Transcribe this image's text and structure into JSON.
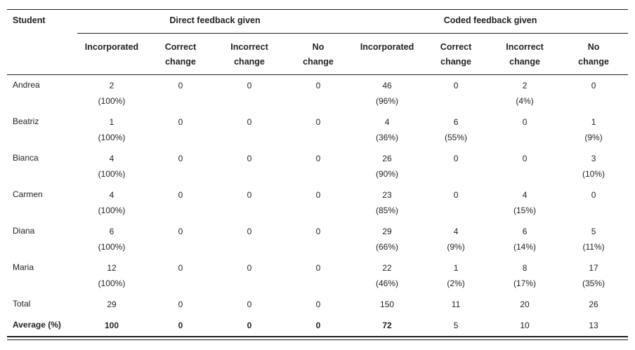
{
  "colors": {
    "text": "#231f20",
    "rule": "#1c1c1c",
    "background": "#ffffff"
  },
  "table": {
    "student_header": "Student",
    "groups": [
      {
        "label": "Direct feedback given"
      },
      {
        "label": "Coded feedback given"
      }
    ],
    "subheaders": [
      {
        "line1": "Incorporated",
        "line2": ""
      },
      {
        "line1": "Correct",
        "line2": "change"
      },
      {
        "line1": "Incorrect",
        "line2": "change"
      },
      {
        "line1": "No",
        "line2": "change"
      },
      {
        "line1": "Incorporated",
        "line2": ""
      },
      {
        "line1": "Correct",
        "line2": "change"
      },
      {
        "line1": "Incorrect",
        "line2": "change"
      },
      {
        "line1": "No",
        "line2": "change"
      }
    ],
    "rows": [
      {
        "student": "Andrea",
        "bold": false,
        "cells": [
          {
            "count": "2",
            "pct": "(100%)"
          },
          {
            "count": "0",
            "pct": ""
          },
          {
            "count": "0",
            "pct": ""
          },
          {
            "count": "0",
            "pct": ""
          },
          {
            "count": "46",
            "pct": "(96%)"
          },
          {
            "count": "0",
            "pct": ""
          },
          {
            "count": "2",
            "pct": "(4%)"
          },
          {
            "count": "0",
            "pct": ""
          }
        ]
      },
      {
        "student": "Beatriz",
        "bold": false,
        "cells": [
          {
            "count": "1",
            "pct": "(100%)"
          },
          {
            "count": "0",
            "pct": ""
          },
          {
            "count": "0",
            "pct": ""
          },
          {
            "count": "0",
            "pct": ""
          },
          {
            "count": "4",
            "pct": "(36%)"
          },
          {
            "count": "6",
            "pct": "(55%)"
          },
          {
            "count": "0",
            "pct": ""
          },
          {
            "count": "1",
            "pct": "(9%)"
          }
        ]
      },
      {
        "student": "Bianca",
        "bold": false,
        "cells": [
          {
            "count": "4",
            "pct": "(100%)"
          },
          {
            "count": "0",
            "pct": ""
          },
          {
            "count": "0",
            "pct": ""
          },
          {
            "count": "0",
            "pct": ""
          },
          {
            "count": "26",
            "pct": "(90%)"
          },
          {
            "count": "0",
            "pct": ""
          },
          {
            "count": "0",
            "pct": ""
          },
          {
            "count": "3",
            "pct": "(10%)"
          }
        ]
      },
      {
        "student": "Carmen",
        "bold": false,
        "cells": [
          {
            "count": "4",
            "pct": "(100%)"
          },
          {
            "count": "0",
            "pct": ""
          },
          {
            "count": "0",
            "pct": ""
          },
          {
            "count": "0",
            "pct": ""
          },
          {
            "count": "23",
            "pct": "(85%)"
          },
          {
            "count": "0",
            "pct": ""
          },
          {
            "count": "4",
            "pct": "(15%)"
          },
          {
            "count": "0",
            "pct": ""
          }
        ]
      },
      {
        "student": "Diana",
        "bold": false,
        "cells": [
          {
            "count": "6",
            "pct": "(100%)"
          },
          {
            "count": "0",
            "pct": ""
          },
          {
            "count": "0",
            "pct": ""
          },
          {
            "count": "0",
            "pct": ""
          },
          {
            "count": "29",
            "pct": "(66%)"
          },
          {
            "count": "4",
            "pct": "(9%)"
          },
          {
            "count": "6",
            "pct": "(14%)"
          },
          {
            "count": "5",
            "pct": "(11%)"
          }
        ]
      },
      {
        "student": "Maria",
        "bold": false,
        "cells": [
          {
            "count": "12",
            "pct": "(100%)"
          },
          {
            "count": "0",
            "pct": ""
          },
          {
            "count": "0",
            "pct": ""
          },
          {
            "count": "0",
            "pct": ""
          },
          {
            "count": "22",
            "pct": "(46%)"
          },
          {
            "count": "1",
            "pct": "(2%)"
          },
          {
            "count": "8",
            "pct": "(17%)"
          },
          {
            "count": "17",
            "pct": "(35%)"
          }
        ]
      },
      {
        "student": "Total",
        "bold": false,
        "cells": [
          {
            "count": "29",
            "pct": ""
          },
          {
            "count": "0",
            "pct": ""
          },
          {
            "count": "0",
            "pct": ""
          },
          {
            "count": "0",
            "pct": ""
          },
          {
            "count": "150",
            "pct": ""
          },
          {
            "count": "11",
            "pct": ""
          },
          {
            "count": "20",
            "pct": ""
          },
          {
            "count": "26",
            "pct": ""
          }
        ]
      },
      {
        "student": "Average (%)",
        "bold": true,
        "cells": [
          {
            "count": "100",
            "pct": "",
            "bold": true
          },
          {
            "count": "0",
            "pct": "",
            "bold": true
          },
          {
            "count": "0",
            "pct": "",
            "bold": true
          },
          {
            "count": "0",
            "pct": "",
            "bold": true
          },
          {
            "count": "72",
            "pct": "",
            "bold": true
          },
          {
            "count": "5",
            "pct": ""
          },
          {
            "count": "10",
            "pct": ""
          },
          {
            "count": "13",
            "pct": ""
          }
        ]
      }
    ]
  }
}
